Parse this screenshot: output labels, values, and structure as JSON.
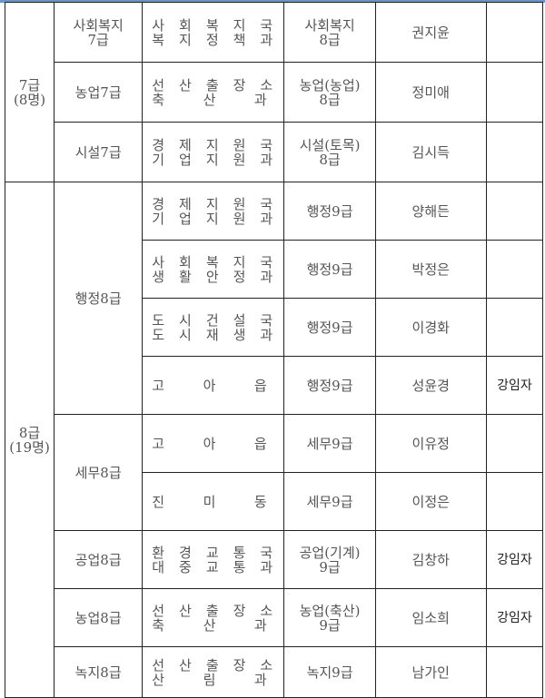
{
  "groups": [
    {
      "grade": "7급",
      "count": "(8명)",
      "rows": [
        {
          "series": "사회복지\n7급",
          "dept": [
            "사회복지국",
            "복지정책과"
          ],
          "new_grade": "사회복지\n8급",
          "name": "권지윤",
          "note": ""
        },
        {
          "series": "농업7급",
          "dept": [
            "선산출장소",
            "축  산  과"
          ],
          "new_grade": "농업(농업)\n8급",
          "name": "정미애",
          "note": ""
        },
        {
          "series": "시설7급",
          "dept": [
            "경제지원국",
            "기업지원과"
          ],
          "new_grade": "시설(토목)\n8급",
          "name": "김시득",
          "note": ""
        }
      ]
    },
    {
      "grade": "8급",
      "count": "(19명)",
      "rows": [
        {
          "series": "행정8급",
          "dept": [
            "경제지원국",
            "기업지원과"
          ],
          "new_grade": "행정9급",
          "name": "양해든",
          "note": ""
        },
        {
          "series": "",
          "dept": [
            "사회복지국",
            "생활안정과"
          ],
          "new_grade": "행정9급",
          "name": "박정은",
          "note": ""
        },
        {
          "series": "",
          "dept": [
            "도시건설국",
            "도시재생과"
          ],
          "new_grade": "행정9급",
          "name": "이경화",
          "note": ""
        },
        {
          "series": "",
          "dept": [
            "고  아  읍"
          ],
          "new_grade": "행정9급",
          "name": "성윤경",
          "note": "강임자"
        },
        {
          "series": "세무8급",
          "dept": [
            "고  아  읍"
          ],
          "new_grade": "세무9급",
          "name": "이유정",
          "note": ""
        },
        {
          "series": "",
          "dept": [
            "진  미  동"
          ],
          "new_grade": "세무9급",
          "name": "이정은",
          "note": ""
        },
        {
          "series": "공업8급",
          "dept": [
            "환경교통국",
            "대중교통과"
          ],
          "new_grade": "공업(기계)\n9급",
          "name": "김창하",
          "note": "강임자"
        },
        {
          "series": "농업8급",
          "dept": [
            "선산출장소",
            "축  산  과"
          ],
          "new_grade": "농업(축산)\n9급",
          "name": "임소희",
          "note": "강임자"
        },
        {
          "series": "녹지8급",
          "dept": [
            "선산출장소",
            "산  림  과"
          ],
          "new_grade": "녹지9급",
          "name": "남가인",
          "note": ""
        }
      ]
    }
  ]
}
